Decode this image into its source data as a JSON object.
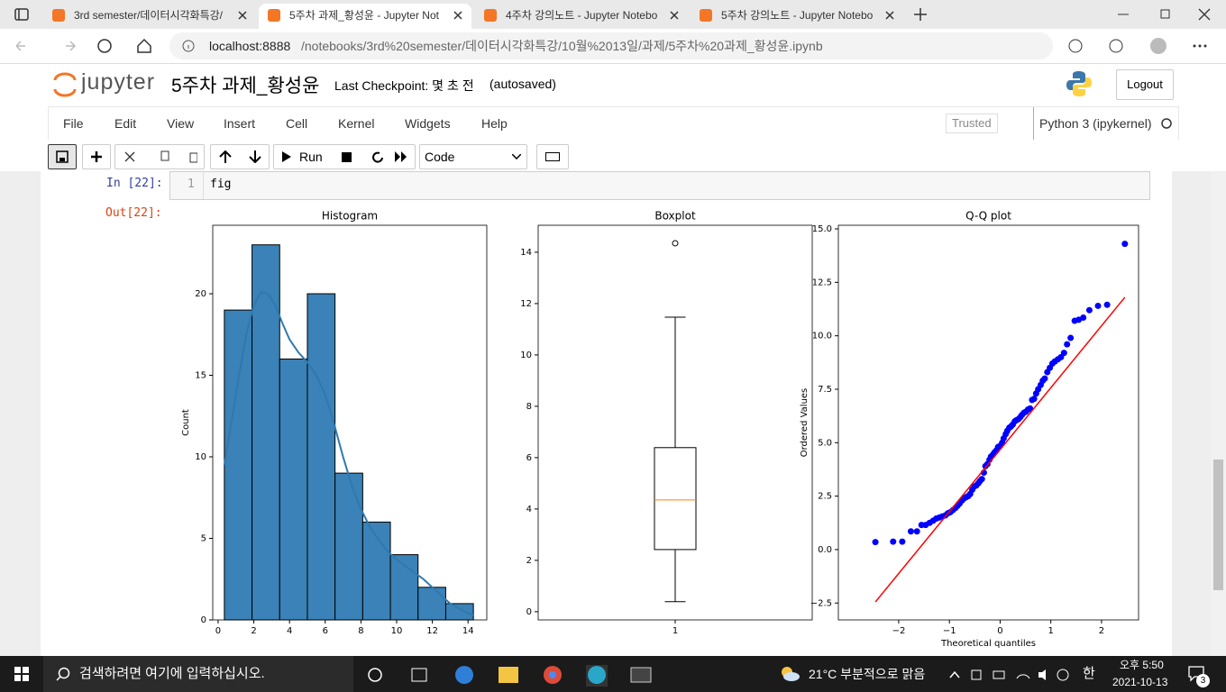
{
  "browser": {
    "tabs": [
      "3rd semester/데이터시각화특강/",
      "5주차 과제_황성윤 - Jupyter Not",
      "4주차 강의노트 - Jupyter Notebo",
      "5주차 강의노트 - Jupyter Notebo"
    ],
    "url_host": "localhost:8888",
    "url_path": "/notebooks/3rd%20semester/데이터시각화특강/10월%2013일/과제/5주차%20과제_황성윤.ipynb"
  },
  "jupyter": {
    "logo": "jupyter",
    "notebook_title": "5주차 과제_황성윤",
    "checkpoint": "Last Checkpoint: 몇 초 전",
    "autosaved": "(autosaved)",
    "logout": "Logout",
    "menu": [
      "File",
      "Edit",
      "View",
      "Insert",
      "Cell",
      "Kernel",
      "Widgets",
      "Help"
    ],
    "trusted": "Trusted",
    "kernel": "Python 3 (ipykernel)",
    "run": "Run",
    "cell_type": "Code"
  },
  "cell": {
    "in_prompt": "In [22]:",
    "line_number": "1",
    "code": "fig",
    "out_prompt": "Out[22]:"
  },
  "taskbar": {
    "search": "검색하려면 여기에 입력하십시오.",
    "weather": "21°C 부분적으로 맑음",
    "ime": "한",
    "time": "오후 5:50",
    "date": "2021-10-13",
    "notifications": "3"
  },
  "chart_data": [
    {
      "type": "histogram",
      "title": "Histogram",
      "ylabel": "Count",
      "color": "#3a82b7",
      "line_color": "#2f79b0",
      "bins": [
        0.35,
        1.9,
        3.45,
        5.0,
        6.55,
        8.1,
        9.65,
        11.2,
        12.75,
        14.3
      ],
      "counts": [
        19,
        23,
        16,
        20,
        9,
        6,
        4,
        2,
        1
      ],
      "kde": {
        "x": [
          0.35,
          0.8,
          1.2,
          1.6,
          2.0,
          2.4,
          2.8,
          3.2,
          3.6,
          4.0,
          4.5,
          5.0,
          5.5,
          6.0,
          6.5,
          7.0,
          7.5,
          8.0,
          8.5,
          9.0,
          9.5,
          10.0,
          10.5,
          11.0,
          11.5,
          12.0,
          12.5,
          13.0,
          13.5,
          14.0,
          14.3
        ],
        "y": [
          9.5,
          12.5,
          15.2,
          17.6,
          19.3,
          20.1,
          20.0,
          19.3,
          18.2,
          17.2,
          16.4,
          15.8,
          15.0,
          13.8,
          12.0,
          10.0,
          8.2,
          6.8,
          5.7,
          4.9,
          4.2,
          3.7,
          3.3,
          2.9,
          2.5,
          2.0,
          1.5,
          1.0,
          0.7,
          0.4,
          0.3
        ]
      },
      "xlim": [
        -0.3,
        15.05
      ],
      "ylim": [
        0,
        24.2
      ],
      "xticks": [
        0,
        2,
        4,
        6,
        8,
        10,
        12,
        14
      ],
      "yticks": [
        0,
        5,
        10,
        15,
        20
      ]
    },
    {
      "type": "box",
      "title": "Boxplot",
      "categories": [
        "1"
      ],
      "median_color": "#ff7f0e",
      "box": {
        "whislo": 0.39,
        "q1": 2.42,
        "med": 4.35,
        "q3": 6.39,
        "whishi": 11.47,
        "fliers": [
          14.35
        ]
      },
      "ylim": [
        -0.32,
        15.05
      ],
      "yticks": [
        0,
        2,
        4,
        6,
        8,
        10,
        12,
        14
      ]
    },
    {
      "type": "scatter",
      "title": "Q-Q plot",
      "xlabel": "Theoretical quantiles",
      "ylabel": "Ordered Values",
      "points": {
        "color": "#0000ff",
        "x": [
          -2.46,
          -2.11,
          -1.93,
          -1.76,
          -1.64,
          -1.55,
          -1.47,
          -1.39,
          -1.32,
          -1.26,
          -1.2,
          -1.14,
          -1.08,
          -1.03,
          -0.98,
          -0.93,
          -0.88,
          -0.84,
          -0.8,
          -0.75,
          -0.71,
          -0.67,
          -0.63,
          -0.59,
          -0.55,
          -0.51,
          -0.47,
          -0.43,
          -0.4,
          -0.36,
          -0.32,
          -0.29,
          -0.25,
          -0.21,
          -0.18,
          -0.14,
          -0.11,
          -0.07,
          -0.04,
          0.0,
          0.04,
          0.07,
          0.11,
          0.14,
          0.18,
          0.21,
          0.25,
          0.29,
          0.32,
          0.36,
          0.4,
          0.43,
          0.47,
          0.51,
          0.55,
          0.59,
          0.63,
          0.67,
          0.71,
          0.75,
          0.8,
          0.84,
          0.88,
          0.93,
          0.98,
          1.03,
          1.08,
          1.14,
          1.2,
          1.26,
          1.32,
          1.39,
          1.47,
          1.55,
          1.64,
          1.76,
          1.93,
          2.11,
          2.46
        ],
        "y": [
          0.35,
          0.37,
          0.37,
          0.85,
          0.85,
          1.15,
          1.15,
          1.25,
          1.35,
          1.45,
          1.5,
          1.55,
          1.6,
          1.7,
          1.75,
          1.85,
          1.95,
          2.05,
          2.15,
          2.3,
          2.4,
          2.45,
          2.5,
          2.6,
          2.8,
          2.95,
          3.0,
          3.1,
          3.2,
          3.3,
          3.6,
          3.9,
          4.0,
          4.2,
          4.35,
          4.45,
          4.55,
          4.65,
          4.8,
          4.85,
          5.0,
          5.2,
          5.4,
          5.55,
          5.7,
          5.75,
          5.85,
          6.0,
          6.05,
          6.1,
          6.2,
          6.3,
          6.4,
          6.45,
          6.55,
          6.6,
          7.0,
          7.05,
          7.3,
          7.5,
          7.7,
          7.9,
          8.0,
          8.3,
          8.5,
          8.7,
          8.8,
          8.9,
          9.0,
          9.2,
          9.6,
          9.9,
          10.7,
          10.75,
          10.85,
          11.2,
          11.4,
          11.45,
          14.3
        ]
      },
      "fit_line": {
        "color": "#ff0000",
        "x": [
          -2.46,
          2.46
        ],
        "y": [
          -2.45,
          11.8
        ]
      },
      "xlim": [
        -3.19,
        2.73
      ],
      "ylim": [
        -3.29,
        15.17
      ],
      "xticks": [
        {
          "value": -2,
          "label": "−2"
        },
        {
          "value": -1,
          "label": "−1"
        },
        0,
        1,
        2
      ],
      "yticks": [
        {
          "value": -2.5,
          "label": "−2.5"
        },
        {
          "value": 0,
          "label": "0.0"
        },
        {
          "value": 2.5,
          "label": "2.5"
        },
        {
          "value": 5,
          "label": "5.0"
        },
        {
          "value": 7.5,
          "label": "7.5"
        },
        {
          "value": 10,
          "label": "10.0"
        },
        {
          "value": 12.5,
          "label": "12.5"
        },
        {
          "value": 15,
          "label": "15.0"
        }
      ]
    }
  ]
}
